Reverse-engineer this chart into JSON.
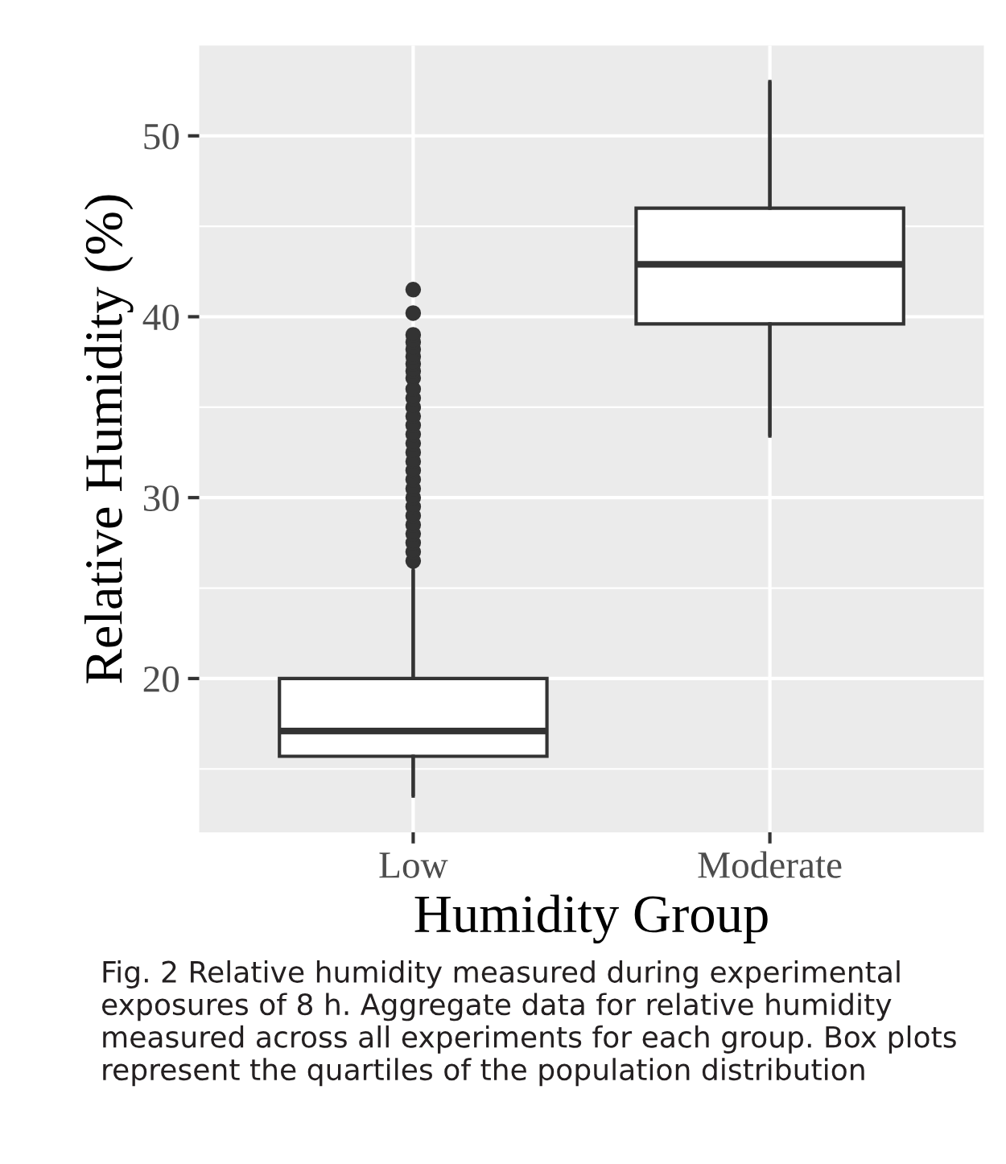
{
  "chart_data": {
    "type": "box",
    "xlabel": "Humidity Group",
    "ylabel": "Relative Humidity (%)",
    "categories": [
      "Low",
      "Moderate"
    ],
    "boxes": [
      {
        "low": 13.5,
        "q1": 15.7,
        "median": 17.1,
        "q3": 20.0,
        "high": 26.0,
        "outliers": [
          26.5,
          27.0,
          27.5,
          28.0,
          28.5,
          29.0,
          29.5,
          30.0,
          30.5,
          31.0,
          31.5,
          32.0,
          32.5,
          33.0,
          33.5,
          34.0,
          34.5,
          35.0,
          35.5,
          36.0,
          36.6,
          37.0,
          37.4,
          37.8,
          38.2,
          38.6,
          39.0,
          40.2,
          41.5
        ]
      },
      {
        "low": 33.4,
        "q1": 39.6,
        "median": 42.9,
        "q3": 46.0,
        "high": 53.0
      }
    ],
    "ylim": [
      11.5,
      55.0
    ],
    "yticks": [
      20,
      30,
      40,
      50
    ],
    "grid": true,
    "annotations": [
      "Fig. 2 Relative humidity measured during experimental exposures of 8 h. Aggregate data for relative humidity measured across all experiments for each group. Box plots represent the quartiles of the population distribution"
    ]
  }
}
